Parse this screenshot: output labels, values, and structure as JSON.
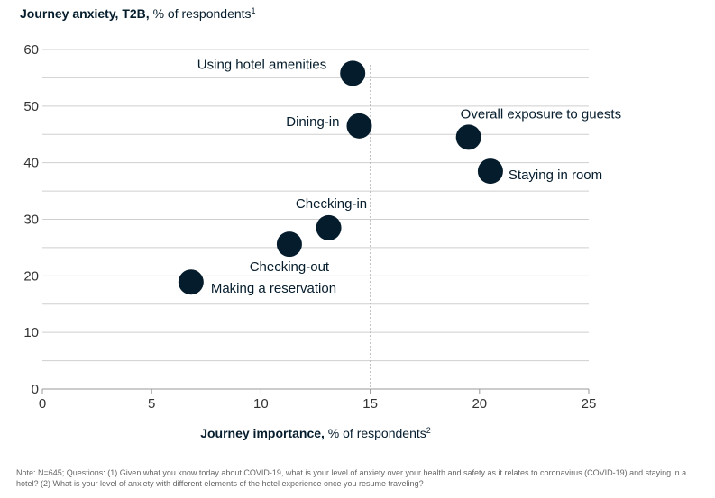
{
  "chart_data": {
    "type": "scatter",
    "title_bold": "Journey anxiety, T2B,",
    "title_rest": " % of respondents",
    "title_sup": "1",
    "xlabel_bold": "Journey importance,",
    "xlabel_rest": " % of respondents",
    "xlabel_sup": "2",
    "xlim": [
      0,
      25
    ],
    "ylim": [
      0,
      60
    ],
    "xticks": [
      0,
      5,
      10,
      15,
      20,
      25
    ],
    "yticks": [
      0,
      10,
      20,
      30,
      40,
      50,
      60
    ],
    "grid": "horizontal",
    "reference_line_x": 15,
    "points": [
      {
        "label": "Using hotel amenities",
        "x": 14.2,
        "y": 55.8
      },
      {
        "label": "Dining-in",
        "x": 14.5,
        "y": 46.5
      },
      {
        "label": "Overall exposure to guests",
        "x": 19.5,
        "y": 44.5
      },
      {
        "label": "Staying in room",
        "x": 20.5,
        "y": 38.5
      },
      {
        "label": "Checking-in",
        "x": 13.1,
        "y": 28.5
      },
      {
        "label": "Checking-out",
        "x": 11.3,
        "y": 25.6
      },
      {
        "label": "Making a reservation",
        "x": 6.8,
        "y": 18.9
      }
    ],
    "colors": {
      "marker": "#051c2c",
      "grid": "#cfcfcf",
      "axis": "#999999",
      "reference": "#bbbbbb"
    }
  },
  "note": "Note: N=645; Questions: (1) Given what you know today about COVID-19, what is your level of anxiety over your health and safety as it relates to coronavirus (COVID-19) and staying in a hotel? (2) What is your level of anxiety with different elements of the hotel experience once you resume traveling?"
}
